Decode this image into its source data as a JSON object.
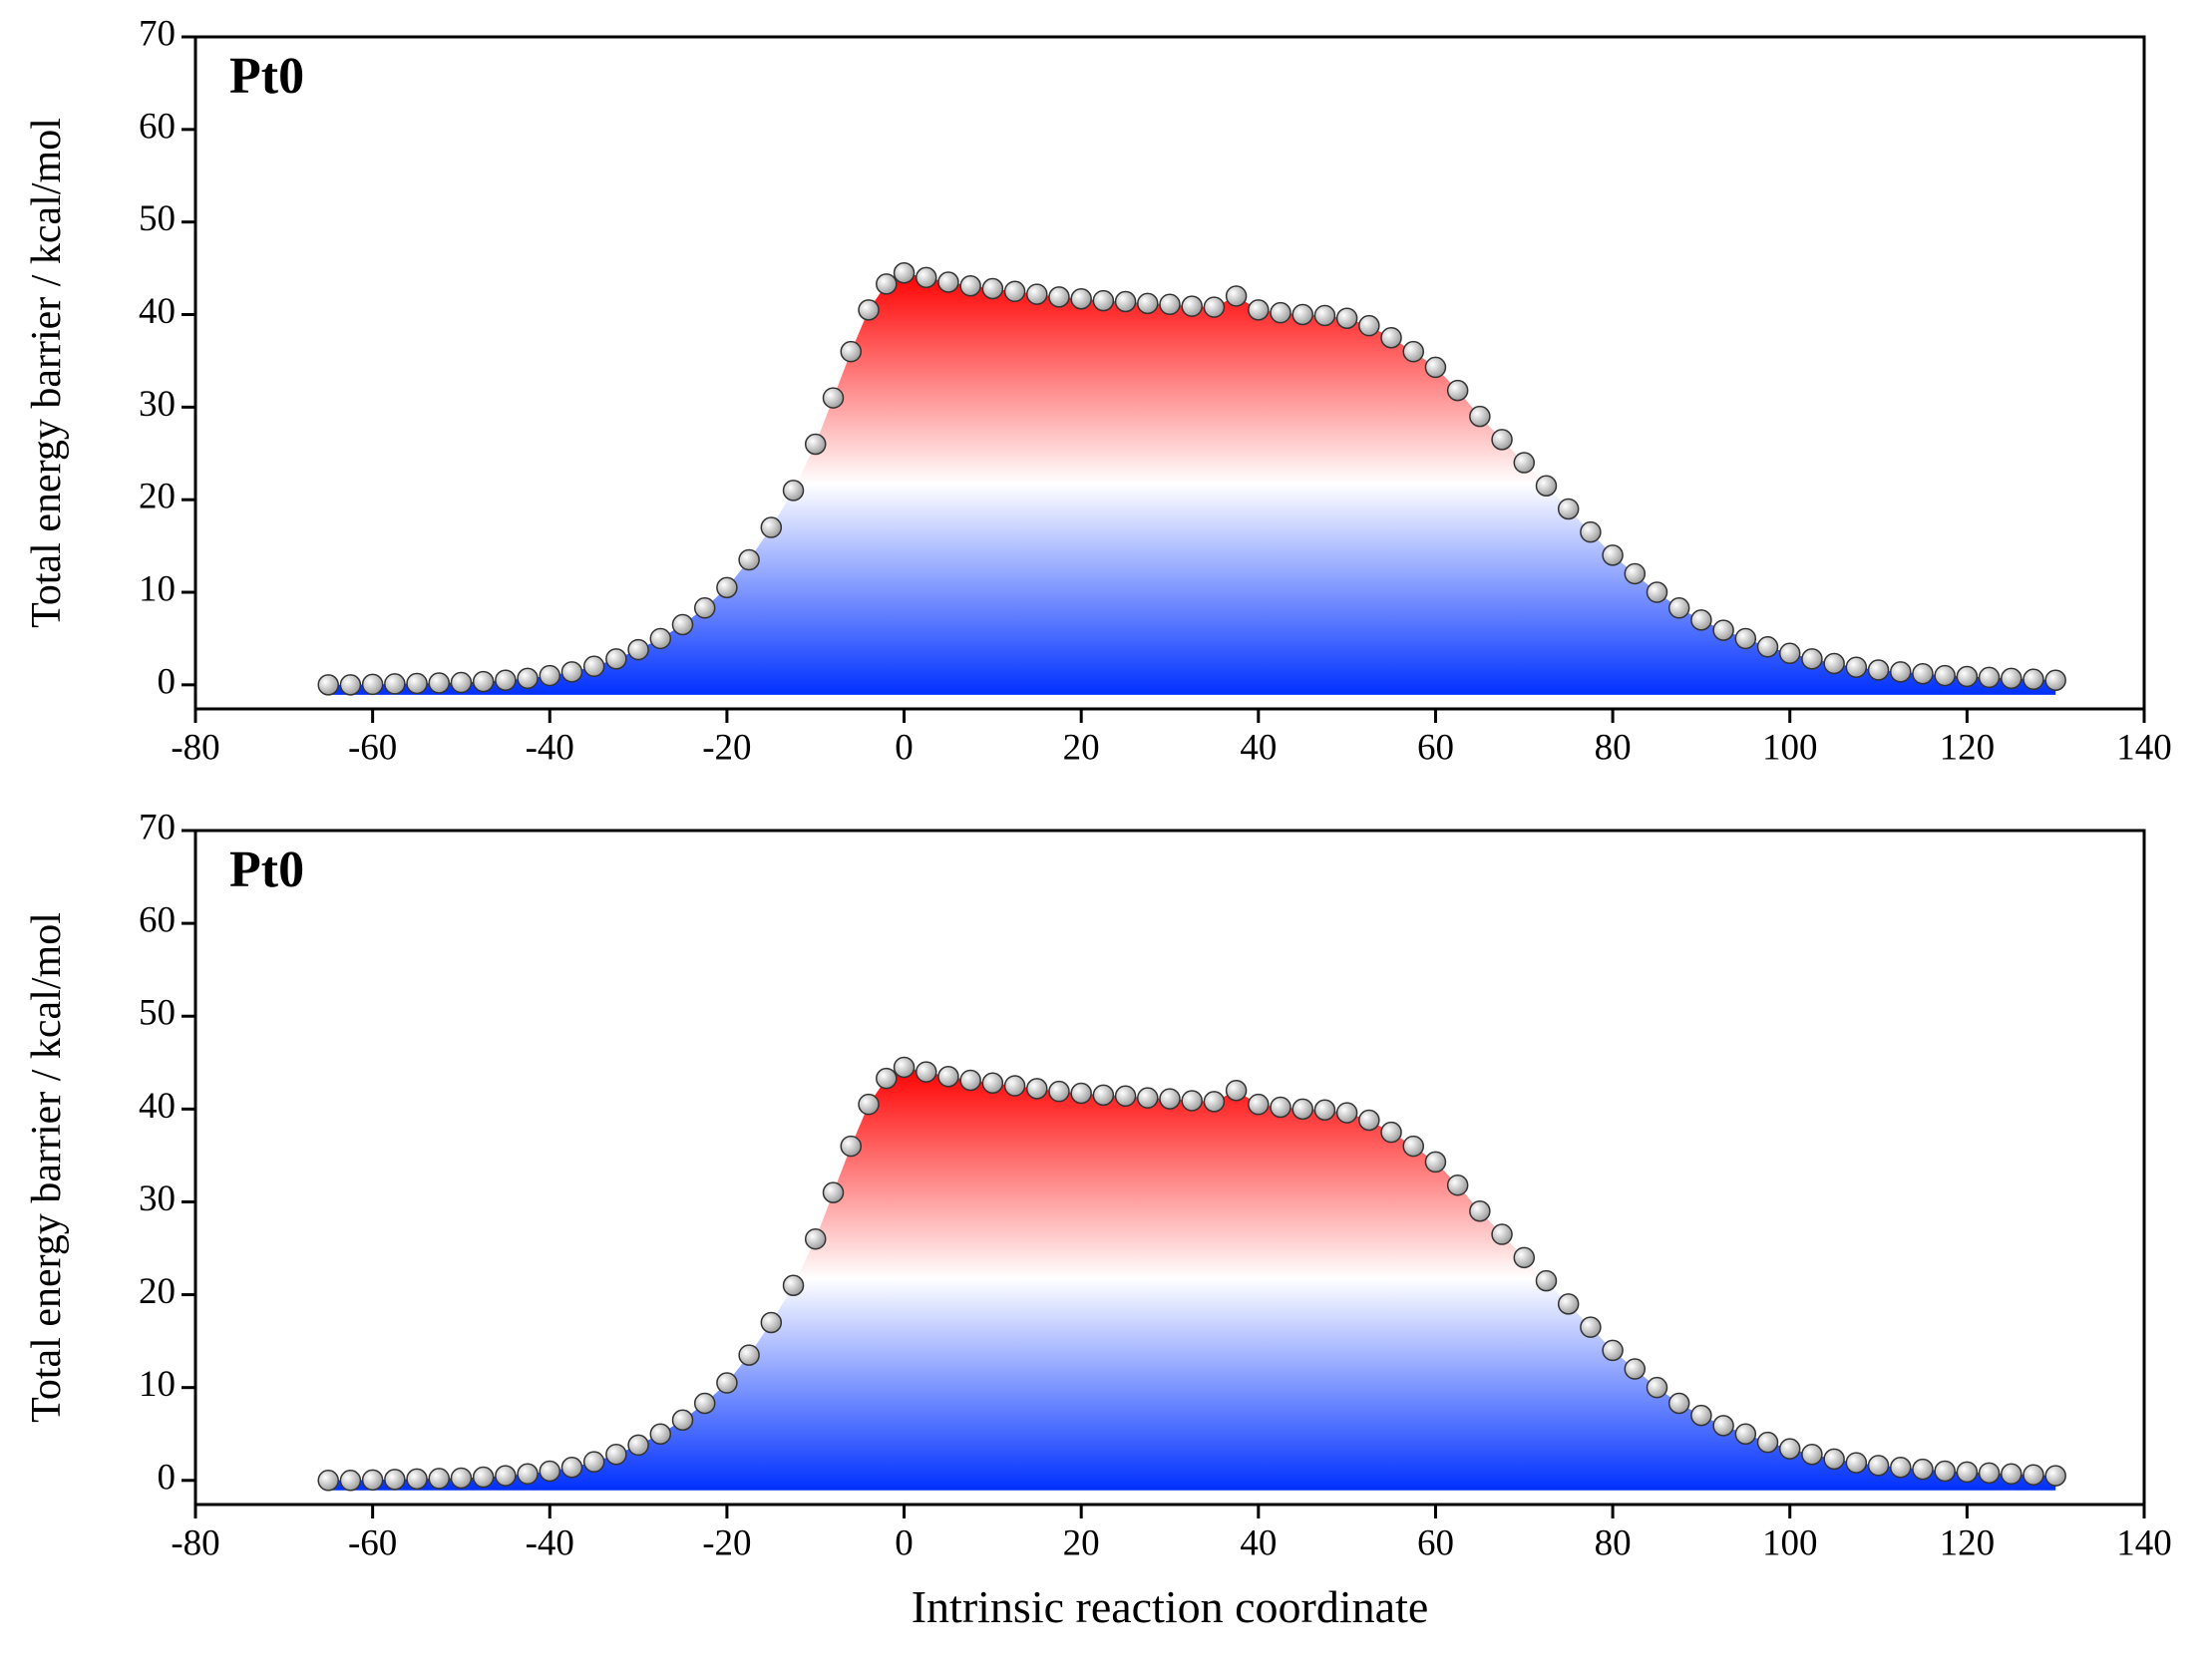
{
  "chart_data": [
    {
      "type": "area",
      "annotation": "Pt0",
      "y_label": "Total energy  barrier / kcal/mol",
      "x": [
        -65,
        -62.5,
        -60,
        -57.5,
        -55,
        -52.5,
        -50,
        -47.5,
        -45,
        -42.5,
        -40,
        -37.5,
        -35,
        -32.5,
        -30,
        -27.5,
        -25,
        -22.5,
        -20,
        -17.5,
        -15,
        -12.5,
        -10,
        -8,
        -6,
        -4,
        -2,
        0,
        2.5,
        5,
        7.5,
        10,
        12.5,
        15,
        17.5,
        20,
        22.5,
        25,
        27.5,
        30,
        32.5,
        35,
        37.5,
        40,
        42.5,
        45,
        47.5,
        50,
        52.5,
        55,
        57.5,
        60,
        62.5,
        65,
        67.5,
        70,
        72.5,
        75,
        77.5,
        80,
        82.5,
        85,
        87.5,
        90,
        92.5,
        95,
        97.5,
        100,
        102.5,
        105,
        107.5,
        110,
        112.5,
        115,
        117.5,
        120,
        122.5,
        125,
        127.5,
        130
      ],
      "values": [
        0,
        0,
        0.05,
        0.1,
        0.15,
        0.2,
        0.25,
        0.35,
        0.5,
        0.7,
        1.0,
        1.4,
        2.0,
        2.8,
        3.8,
        5.0,
        6.5,
        8.3,
        10.5,
        13.5,
        17,
        21,
        26,
        31,
        36,
        40.5,
        43.3,
        44.5,
        44,
        43.5,
        43.1,
        42.8,
        42.5,
        42.2,
        41.9,
        41.7,
        41.5,
        41.4,
        41.2,
        41.1,
        40.9,
        40.8,
        42,
        40.5,
        40.2,
        40,
        39.9,
        39.6,
        38.8,
        37.5,
        36,
        34.3,
        31.8,
        29,
        26.5,
        24,
        21.5,
        19,
        16.5,
        14,
        12,
        10,
        8.3,
        7,
        5.9,
        5,
        4.1,
        3.4,
        2.8,
        2.3,
        1.9,
        1.6,
        1.4,
        1.2,
        1.0,
        0.9,
        0.8,
        0.7,
        0.6,
        0.5
      ],
      "xlim": [
        -80,
        140
      ],
      "xticks": [
        -80,
        -60,
        -40,
        -20,
        0,
        20,
        40,
        60,
        80,
        100,
        120,
        140
      ],
      "ylim": [
        -2.6,
        70
      ],
      "yticks": [
        0,
        10,
        20,
        30,
        40,
        50,
        60,
        70
      ]
    },
    {
      "type": "area",
      "annotation": "Pt0",
      "y_label": "Total energy  barrier / kcal/mol",
      "x_label": "Intrinsic reaction coordinate",
      "x": [
        -65,
        -62.5,
        -60,
        -57.5,
        -55,
        -52.5,
        -50,
        -47.5,
        -45,
        -42.5,
        -40,
        -37.5,
        -35,
        -32.5,
        -30,
        -27.5,
        -25,
        -22.5,
        -20,
        -17.5,
        -15,
        -12.5,
        -10,
        -8,
        -6,
        -4,
        -2,
        0,
        2.5,
        5,
        7.5,
        10,
        12.5,
        15,
        17.5,
        20,
        22.5,
        25,
        27.5,
        30,
        32.5,
        35,
        37.5,
        40,
        42.5,
        45,
        47.5,
        50,
        52.5,
        55,
        57.5,
        60,
        62.5,
        65,
        67.5,
        70,
        72.5,
        75,
        77.5,
        80,
        82.5,
        85,
        87.5,
        90,
        92.5,
        95,
        97.5,
        100,
        102.5,
        105,
        107.5,
        110,
        112.5,
        115,
        117.5,
        120,
        122.5,
        125,
        127.5,
        130
      ],
      "values": [
        0,
        0,
        0.05,
        0.1,
        0.15,
        0.2,
        0.25,
        0.35,
        0.5,
        0.7,
        1.0,
        1.4,
        2.0,
        2.8,
        3.8,
        5.0,
        6.5,
        8.3,
        10.5,
        13.5,
        17,
        21,
        26,
        31,
        36,
        40.5,
        43.3,
        44.5,
        44,
        43.5,
        43.1,
        42.8,
        42.5,
        42.2,
        41.9,
        41.7,
        41.5,
        41.4,
        41.2,
        41.1,
        40.9,
        40.8,
        42,
        40.5,
        40.2,
        40,
        39.9,
        39.6,
        38.8,
        37.5,
        36,
        34.3,
        31.8,
        29,
        26.5,
        24,
        21.5,
        19,
        16.5,
        14,
        12,
        10,
        8.3,
        7,
        5.9,
        5,
        4.1,
        3.4,
        2.8,
        2.3,
        1.9,
        1.6,
        1.4,
        1.2,
        1.0,
        0.9,
        0.8,
        0.7,
        0.6,
        0.5
      ],
      "xlim": [
        -80,
        140
      ],
      "xticks": [
        -80,
        -60,
        -40,
        -20,
        0,
        20,
        40,
        60,
        80,
        100,
        120,
        140
      ],
      "ylim": [
        -2.6,
        70
      ],
      "yticks": [
        0,
        10,
        20,
        30,
        40,
        50,
        60,
        70
      ]
    }
  ]
}
